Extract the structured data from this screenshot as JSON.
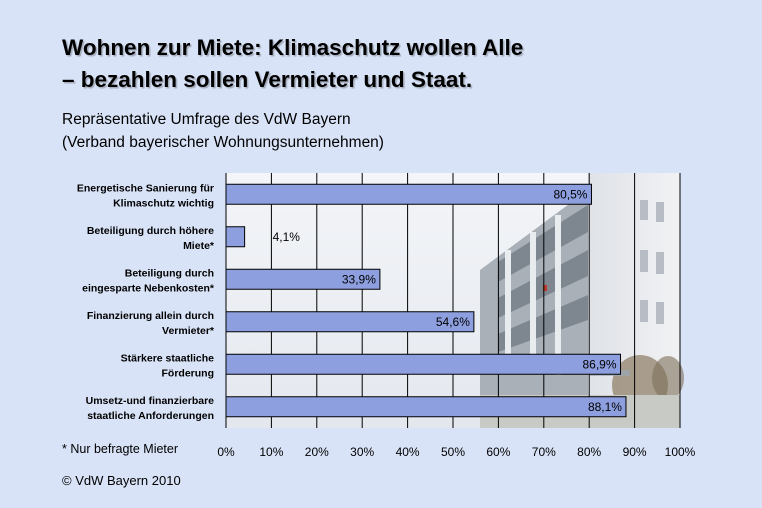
{
  "header": {
    "title_line1": "Wohnen zur Miete: Klimaschutz wollen Alle",
    "title_line2": "– bezahlen sollen Vermieter und Staat.",
    "subtitle_line1": "Repräsentative Umfrage des VdW Bayern",
    "subtitle_line2": "(Verband bayerischer Wohnungsunternehmen)"
  },
  "footer": {
    "footnote": "* Nur befragte Mieter",
    "copyright": "© VdW Bayern 2010"
  },
  "colors": {
    "background": "#d9e3f7",
    "bar_fill": "#8d9fdf",
    "bar_stroke": "#000000"
  },
  "chart_data": {
    "type": "bar",
    "orientation": "horizontal",
    "categories": [
      [
        "Energetische Sanierung für",
        "Klimaschutz wichtig"
      ],
      [
        "Beteiligung durch höhere",
        "Miete*"
      ],
      [
        "Beteiligung durch",
        "eingesparte Nebenkosten*"
      ],
      [
        "Finanzierung allein durch",
        "Vermieter*"
      ],
      [
        "Stärkere staatliche",
        "Förderung"
      ],
      [
        "Umsetz-und finanzierbare",
        "staatliche Anforderungen"
      ]
    ],
    "values": [
      80.5,
      4.1,
      33.9,
      54.6,
      86.9,
      88.1
    ],
    "value_labels": [
      "80,5%",
      "4,1%",
      "33,9%",
      "54,6%",
      "86,9%",
      "88,1%"
    ],
    "xlim": [
      0,
      100
    ],
    "xticks": [
      "0%",
      "10%",
      "20%",
      "30%",
      "40%",
      "50%",
      "60%",
      "70%",
      "80%",
      "90%",
      "100%"
    ],
    "grid": true,
    "legend": "none"
  }
}
